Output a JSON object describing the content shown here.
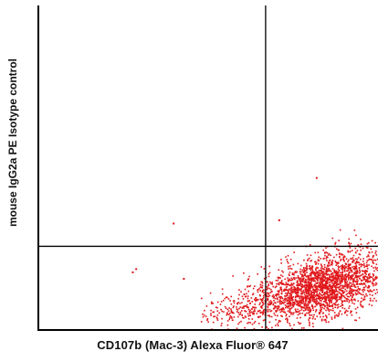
{
  "chart_data": {
    "type": "scatter",
    "xlabel": "CD107b (Mac-3) Alexa Fluor® 647",
    "ylabel": "mouse IgG2a PE Isotype control",
    "xlim": [
      0,
      100
    ],
    "ylim": [
      0,
      100
    ],
    "grid": false,
    "quadrant_gates": {
      "x": 67,
      "y": 26
    },
    "series": [
      {
        "color": "#e0181b",
        "cluster_center": [
          85,
          14
        ],
        "cluster_spread": [
          9,
          5
        ],
        "outliers": [
          [
            40,
            33
          ],
          [
            29,
            19
          ],
          [
            28,
            18
          ],
          [
            43,
            16
          ],
          [
            82,
            47
          ],
          [
            71,
            34
          ]
        ]
      }
    ]
  }
}
